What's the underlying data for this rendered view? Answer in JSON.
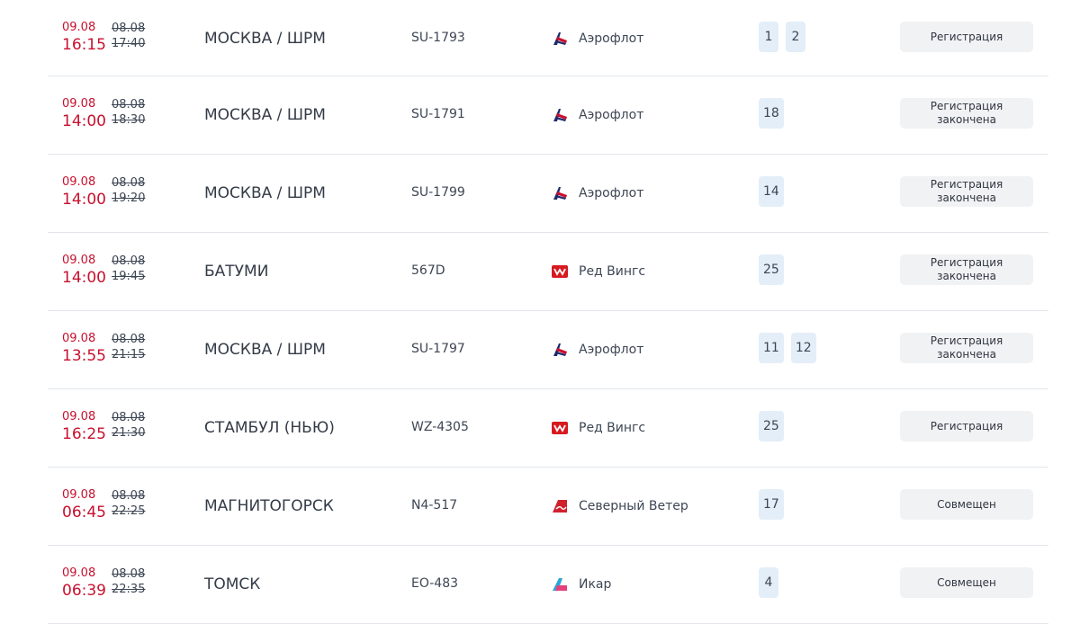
{
  "colors": {
    "accent": "#c8102e",
    "gate_bg": "#e3eef8",
    "status_bg": "#f1f2f4"
  },
  "flights": [
    {
      "new_date": "09.08",
      "new_time": "16:15",
      "old_date": "08.08",
      "old_time": "17:40",
      "destination": "МОСКВА / ШРМ",
      "flight": "SU-1793",
      "airline": "Аэрофлот",
      "airline_icon": "aeroflot-logo-icon",
      "gates": [
        "1",
        "2"
      ],
      "status": "Регистрация"
    },
    {
      "new_date": "09.08",
      "new_time": "14:00",
      "old_date": "08.08",
      "old_time": "18:30",
      "destination": "МОСКВА / ШРМ",
      "flight": "SU-1791",
      "airline": "Аэрофлот",
      "airline_icon": "aeroflot-logo-icon",
      "gates": [
        "18"
      ],
      "status": "Регистрация закончена"
    },
    {
      "new_date": "09.08",
      "new_time": "14:00",
      "old_date": "08.08",
      "old_time": "19:20",
      "destination": "МОСКВА / ШРМ",
      "flight": "SU-1799",
      "airline": "Аэрофлот",
      "airline_icon": "aeroflot-logo-icon",
      "gates": [
        "14"
      ],
      "status": "Регистрация закончена"
    },
    {
      "new_date": "09.08",
      "new_time": "14:00",
      "old_date": "08.08",
      "old_time": "19:45",
      "destination": "БАТУМИ",
      "flight": "567D",
      "airline": "Ред Вингс",
      "airline_icon": "redwings-logo-icon",
      "gates": [
        "25"
      ],
      "status": "Регистрация закончена"
    },
    {
      "new_date": "09.08",
      "new_time": "13:55",
      "old_date": "08.08",
      "old_time": "21:15",
      "destination": "МОСКВА / ШРМ",
      "flight": "SU-1797",
      "airline": "Аэрофлот",
      "airline_icon": "aeroflot-logo-icon",
      "gates": [
        "11",
        "12"
      ],
      "status": "Регистрация закончена"
    },
    {
      "new_date": "09.08",
      "new_time": "16:25",
      "old_date": "08.08",
      "old_time": "21:30",
      "destination": "СТАМБУЛ (НЬЮ)",
      "flight": "WZ-4305",
      "airline": "Ред Вингс",
      "airline_icon": "redwings-logo-icon",
      "gates": [
        "25"
      ],
      "status": "Регистрация"
    },
    {
      "new_date": "09.08",
      "new_time": "06:45",
      "old_date": "08.08",
      "old_time": "22:25",
      "destination": "МАГНИТОГОРСК",
      "flight": "N4-517",
      "airline": "Северный Ветер",
      "airline_icon": "nordwind-logo-icon",
      "gates": [
        "17"
      ],
      "status": "Совмещен"
    },
    {
      "new_date": "09.08",
      "new_time": "06:39",
      "old_date": "08.08",
      "old_time": "22:35",
      "destination": "ТОМСК",
      "flight": "EO-483",
      "airline": "Икар",
      "airline_icon": "ikar-logo-icon",
      "gates": [
        "4"
      ],
      "status": "Совмещен"
    }
  ]
}
